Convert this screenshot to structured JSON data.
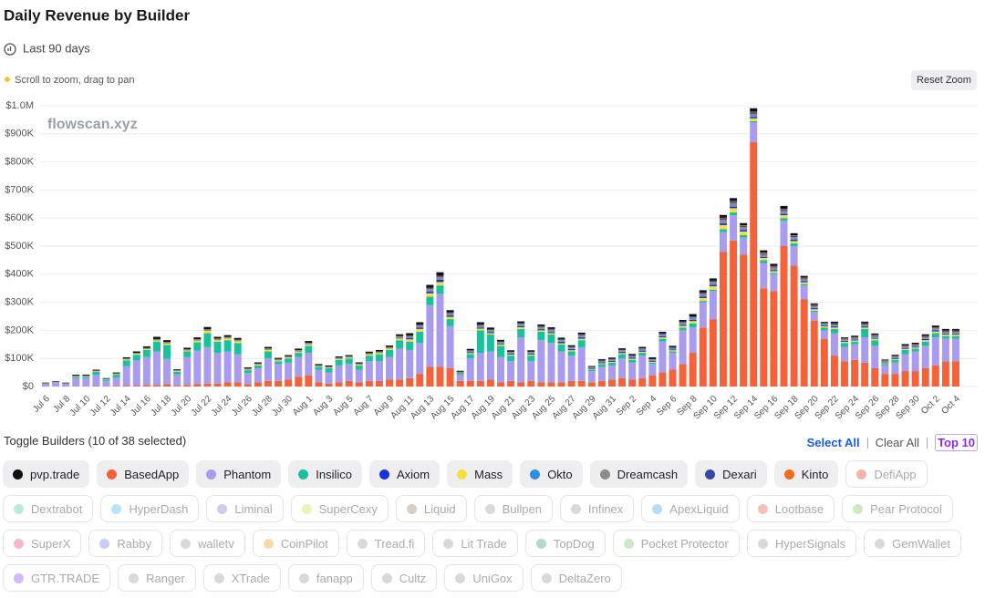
{
  "header": {
    "title": "Daily Revenue by Builder",
    "range": "Last 90 days",
    "hint": "Scroll to zoom, drag to pan",
    "reset": "Reset Zoom"
  },
  "chart_data": {
    "type": "stacked-bar",
    "watermark": "flowscan.xyz",
    "categories": [
      "Jul 6",
      null,
      "Jul 8",
      null,
      "Jul 10",
      null,
      "Jul 12",
      null,
      "Jul 14",
      null,
      "Jul 16",
      null,
      "Jul 18",
      null,
      "Jul 20",
      null,
      "Jul 22",
      null,
      "Jul 24",
      null,
      "Jul 26",
      null,
      "Jul 28",
      null,
      "Jul 30",
      null,
      "Aug 1",
      null,
      "Aug 3",
      null,
      "Aug 5",
      null,
      "Aug 7",
      null,
      "Aug 9",
      null,
      "Aug 11",
      null,
      "Aug 13",
      null,
      "Aug 15",
      null,
      "Aug 17",
      null,
      "Aug 19",
      null,
      "Aug 21",
      null,
      "Aug 23",
      null,
      "Aug 25",
      null,
      "Aug 27",
      null,
      "Aug 29",
      null,
      "Aug 31",
      null,
      "Sep 2",
      null,
      "Sep 4",
      null,
      "Sep 6",
      null,
      "Sep 8",
      null,
      "Sep 10",
      null,
      "Sep 12",
      null,
      "Sep 14",
      null,
      "Sep 16",
      null,
      "Sep 18",
      null,
      "Sep 20",
      null,
      "Sep 22",
      null,
      "Sep 24",
      null,
      "Sep 26",
      null,
      "Sep 28",
      null,
      "Sep 30",
      null,
      "Oct 2",
      null,
      "Oct 4"
    ],
    "ylim": [
      0,
      1000
    ],
    "yticks": [
      {
        "value": 0,
        "label": "$0"
      },
      {
        "value": 100,
        "label": "$100K"
      },
      {
        "value": 200,
        "label": "$200K"
      },
      {
        "value": 300,
        "label": "$300K"
      },
      {
        "value": 400,
        "label": "$400K"
      },
      {
        "value": 500,
        "label": "$500K"
      },
      {
        "value": 600,
        "label": "$600K"
      },
      {
        "value": 700,
        "label": "$700K"
      },
      {
        "value": 800,
        "label": "$800K"
      },
      {
        "value": 900,
        "label": "$900K"
      },
      {
        "value": 1000,
        "label": "$1.0M"
      }
    ],
    "grid": true,
    "series": [
      {
        "name": "pvp.trade",
        "color": "#111111",
        "values": [
          2,
          2,
          2,
          3,
          3,
          3,
          2,
          3,
          4,
          5,
          5,
          8,
          6,
          3,
          5,
          6,
          8,
          6,
          6,
          6,
          4,
          4,
          5,
          4,
          4,
          5,
          6,
          4,
          4,
          4,
          4,
          4,
          5,
          5,
          5,
          6,
          8,
          8,
          10,
          12,
          8,
          3,
          5,
          8,
          6,
          5,
          4,
          6,
          4,
          6,
          6,
          5,
          5,
          6,
          3,
          4,
          4,
          5,
          5,
          5,
          5,
          6,
          5,
          6,
          8,
          8,
          8,
          10,
          10,
          8,
          12,
          8,
          8,
          10,
          8,
          6,
          5,
          4,
          6,
          4,
          5,
          6,
          5,
          3,
          4,
          5,
          5,
          6,
          6,
          6,
          6
        ]
      },
      {
        "name": "BasedApp",
        "color": "#f4623a",
        "values": [
          0,
          0,
          0,
          0,
          0,
          2,
          0,
          2,
          3,
          3,
          5,
          5,
          8,
          3,
          5,
          8,
          10,
          10,
          15,
          15,
          8,
          15,
          20,
          20,
          25,
          35,
          40,
          15,
          10,
          15,
          20,
          15,
          20,
          20,
          25,
          25,
          30,
          45,
          70,
          70,
          65,
          20,
          20,
          20,
          25,
          15,
          20,
          15,
          20,
          15,
          15,
          15,
          20,
          20,
          15,
          20,
          25,
          30,
          25,
          30,
          40,
          50,
          60,
          80,
          120,
          210,
          240,
          480,
          520,
          470,
          870,
          350,
          340,
          500,
          430,
          310,
          235,
          170,
          110,
          90,
          95,
          85,
          65,
          45,
          45,
          55,
          55,
          65,
          75,
          90,
          90
        ]
      },
      {
        "name": "Phantom",
        "color": "#a99cef",
        "values": [
          10,
          15,
          10,
          30,
          30,
          40,
          20,
          30,
          70,
          90,
          100,
          120,
          90,
          40,
          100,
          120,
          130,
          110,
          110,
          100,
          40,
          50,
          80,
          60,
          60,
          70,
          80,
          45,
          40,
          60,
          60,
          45,
          70,
          70,
          80,
          110,
          100,
          110,
          220,
          260,
          150,
          20,
          80,
          100,
          100,
          90,
          70,
          160,
          70,
          150,
          140,
          110,
          90,
          120,
          40,
          50,
          50,
          70,
          60,
          80,
          40,
          110,
          60,
          120,
          90,
          90,
          100,
          70,
          90,
          60,
          70,
          90,
          60,
          90,
          70,
          50,
          30,
          30,
          80,
          50,
          55,
          90,
          80,
          30,
          40,
          60,
          70,
          80,
          100,
          80,
          80
        ]
      },
      {
        "name": "Insilico",
        "color": "#19c29a",
        "values": [
          0,
          0,
          0,
          5,
          5,
          10,
          5,
          10,
          20,
          20,
          25,
          35,
          50,
          10,
          20,
          30,
          50,
          40,
          40,
          40,
          10,
          10,
          25,
          10,
          15,
          15,
          25,
          10,
          15,
          20,
          20,
          15,
          20,
          25,
          25,
          30,
          30,
          40,
          30,
          30,
          25,
          5,
          15,
          80,
          60,
          40,
          20,
          30,
          20,
          30,
          30,
          25,
          15,
          25,
          5,
          10,
          10,
          15,
          10,
          10,
          5,
          10,
          5,
          10,
          15,
          5,
          5,
          10,
          10,
          10,
          5,
          10,
          5,
          10,
          10,
          5,
          5,
          10,
          15,
          15,
          10,
          30,
          20,
          5,
          10,
          15,
          10,
          15,
          15,
          10,
          10
        ]
      },
      {
        "name": "Axiom",
        "color": "#1a33d6",
        "values": [
          0,
          0,
          0,
          0,
          0,
          0,
          0,
          0,
          0,
          0,
          0,
          0,
          0,
          0,
          0,
          0,
          0,
          0,
          0,
          0,
          0,
          0,
          0,
          0,
          0,
          0,
          0,
          0,
          0,
          0,
          0,
          0,
          0,
          0,
          0,
          2,
          4,
          5,
          6,
          8,
          5,
          2,
          3,
          4,
          4,
          3,
          3,
          4,
          3,
          4,
          4,
          5,
          4,
          5,
          2,
          3,
          3,
          4,
          4,
          4,
          3,
          4,
          3,
          4,
          5,
          5,
          5,
          6,
          6,
          5,
          5,
          4,
          4,
          5,
          5,
          4,
          4,
          3,
          4,
          3,
          3,
          4,
          3,
          2,
          3,
          3,
          3,
          4,
          4,
          3,
          3
        ]
      },
      {
        "name": "Mass",
        "color": "#f7e03c",
        "values": [
          0,
          0,
          0,
          1,
          1,
          2,
          1,
          2,
          3,
          3,
          3,
          4,
          5,
          2,
          3,
          5,
          8,
          5,
          6,
          6,
          2,
          3,
          5,
          3,
          3,
          4,
          5,
          2,
          2,
          3,
          3,
          3,
          4,
          4,
          5,
          6,
          8,
          10,
          12,
          12,
          8,
          2,
          4,
          6,
          5,
          5,
          4,
          6,
          4,
          5,
          5,
          4,
          4,
          5,
          2,
          3,
          3,
          4,
          4,
          4,
          3,
          5,
          4,
          6,
          8,
          10,
          12,
          15,
          15,
          12,
          10,
          8,
          6,
          10,
          8,
          6,
          5,
          4,
          5,
          4,
          4,
          5,
          5,
          3,
          3,
          4,
          4,
          5,
          6,
          5,
          5
        ]
      },
      {
        "name": "Okto",
        "color": "#2b8fe6",
        "values": [
          0,
          0,
          0,
          0,
          0,
          0,
          0,
          0,
          0,
          0,
          0,
          0,
          0,
          0,
          0,
          0,
          0,
          0,
          0,
          0,
          0,
          0,
          0,
          0,
          0,
          0,
          0,
          0,
          0,
          0,
          0,
          0,
          0,
          0,
          0,
          0,
          0,
          0,
          0,
          0,
          0,
          0,
          0,
          0,
          0,
          0,
          1,
          1,
          1,
          1,
          1,
          1,
          1,
          1,
          1,
          1,
          1,
          1,
          1,
          1,
          1,
          1,
          1,
          1,
          1,
          1,
          1,
          1,
          1,
          1,
          1,
          1,
          1,
          1,
          1,
          1,
          1,
          1,
          1,
          1,
          1,
          1,
          1,
          1,
          1,
          1,
          1,
          1,
          1,
          1,
          1
        ]
      },
      {
        "name": "Dreamcash",
        "color": "#8b8b8b",
        "values": [
          2,
          2,
          2,
          3,
          3,
          3,
          2,
          3,
          4,
          4,
          5,
          5,
          6,
          3,
          5,
          6,
          6,
          6,
          6,
          6,
          4,
          4,
          6,
          5,
          5,
          6,
          6,
          4,
          4,
          5,
          5,
          4,
          5,
          6,
          6,
          7,
          8,
          8,
          10,
          10,
          8,
          3,
          5,
          8,
          7,
          6,
          5,
          7,
          5,
          7,
          7,
          6,
          6,
          7,
          4,
          4,
          5,
          5,
          5,
          5,
          5,
          6,
          5,
          7,
          8,
          10,
          10,
          12,
          12,
          10,
          10,
          8,
          8,
          10,
          8,
          7,
          6,
          5,
          6,
          5,
          5,
          6,
          6,
          4,
          4,
          5,
          5,
          6,
          6,
          6,
          6
        ]
      },
      {
        "name": "Dexari",
        "color": "#3647a8",
        "values": [
          0,
          0,
          0,
          0,
          0,
          0,
          0,
          0,
          0,
          0,
          0,
          0,
          0,
          0,
          0,
          0,
          0,
          0,
          0,
          0,
          0,
          0,
          0,
          0,
          0,
          0,
          0,
          0,
          0,
          0,
          0,
          0,
          0,
          0,
          0,
          0,
          2,
          3,
          4,
          5,
          3,
          1,
          2,
          3,
          3,
          2,
          2,
          3,
          2,
          3,
          3,
          3,
          2,
          3,
          1,
          2,
          2,
          2,
          2,
          2,
          2,
          3,
          2,
          3,
          3,
          4,
          4,
          5,
          5,
          4,
          6,
          4,
          3,
          5,
          4,
          3,
          3,
          2,
          3,
          2,
          2,
          3,
          3,
          2,
          2,
          2,
          2,
          3,
          3,
          3,
          3
        ]
      },
      {
        "name": "Kinto",
        "color": "#f26a1b",
        "values": [
          0,
          0,
          0,
          0,
          0,
          0,
          0,
          0,
          0,
          0,
          0,
          0,
          0,
          0,
          0,
          0,
          0,
          0,
          0,
          0,
          0,
          0,
          0,
          0,
          0,
          0,
          0,
          0,
          0,
          0,
          0,
          0,
          0,
          0,
          0,
          0,
          0,
          0,
          0,
          0,
          0,
          0,
          0,
          0,
          0,
          0,
          0,
          0,
          0,
          0,
          0,
          0,
          0,
          0,
          0,
          0,
          0,
          0,
          0,
          0,
          0,
          0,
          0,
          0,
          0,
          0,
          0,
          2,
          2,
          2,
          2,
          2,
          2,
          2,
          2,
          2,
          2,
          1,
          1,
          1,
          1,
          1,
          1,
          1,
          1,
          1,
          1,
          1,
          1,
          1,
          1
        ]
      }
    ]
  },
  "builder_toggle": {
    "label": "Toggle Builders (10 of 38 selected)",
    "actions": [
      "Select All",
      "Clear All",
      "Top 10"
    ],
    "inactive": [
      {
        "name": "DefiApp",
        "color": "#f6b3aa"
      },
      {
        "name": "Dextrabot",
        "color": "#b5eddf"
      },
      {
        "name": "HyperDash",
        "color": "#b6e3f5"
      },
      {
        "name": "Liminal",
        "color": "#d5c9ed"
      },
      {
        "name": "SuperCexy",
        "color": "#e6f6b8"
      },
      {
        "name": "Liquid",
        "color": "#dacdc1"
      },
      {
        "name": "Bullpen",
        "color": "#d9d9d9"
      },
      {
        "name": "Infinex",
        "color": "#d9d9d9"
      },
      {
        "name": "ApexLiquid",
        "color": "#b8dcf5"
      },
      {
        "name": "Lootbase",
        "color": "#f6c1b2"
      },
      {
        "name": "Pear Protocol",
        "color": "#cde9c1"
      },
      {
        "name": "SuperX",
        "color": "#f6b9c9"
      },
      {
        "name": "Rabby",
        "color": "#c9cdf6"
      },
      {
        "name": "walletv",
        "color": "#d9d9d9"
      },
      {
        "name": "CoinPilot",
        "color": "#f9d9a9"
      },
      {
        "name": "Tread.fi",
        "color": "#d9d9d9"
      },
      {
        "name": "Lit Trade",
        "color": "#d9d9d9"
      },
      {
        "name": "TopDog",
        "color": "#b1d9cd"
      },
      {
        "name": "Pocket Protector",
        "color": "#c9e9c9"
      },
      {
        "name": "HyperSignals",
        "color": "#d9d9d9"
      },
      {
        "name": "GemWallet",
        "color": "#d9d9d9"
      },
      {
        "name": "GTR.TRADE",
        "color": "#d5b9f5"
      },
      {
        "name": "Ranger",
        "color": "#d9d9d9"
      },
      {
        "name": "XTrade",
        "color": "#d9d9d9"
      },
      {
        "name": "fanapp",
        "color": "#d9d9d9"
      },
      {
        "name": "Cultz",
        "color": "#d9d9d9"
      },
      {
        "name": "UniGox",
        "color": "#d9d9d9"
      },
      {
        "name": "DeltaZero",
        "color": "#d9d9d9"
      }
    ]
  }
}
